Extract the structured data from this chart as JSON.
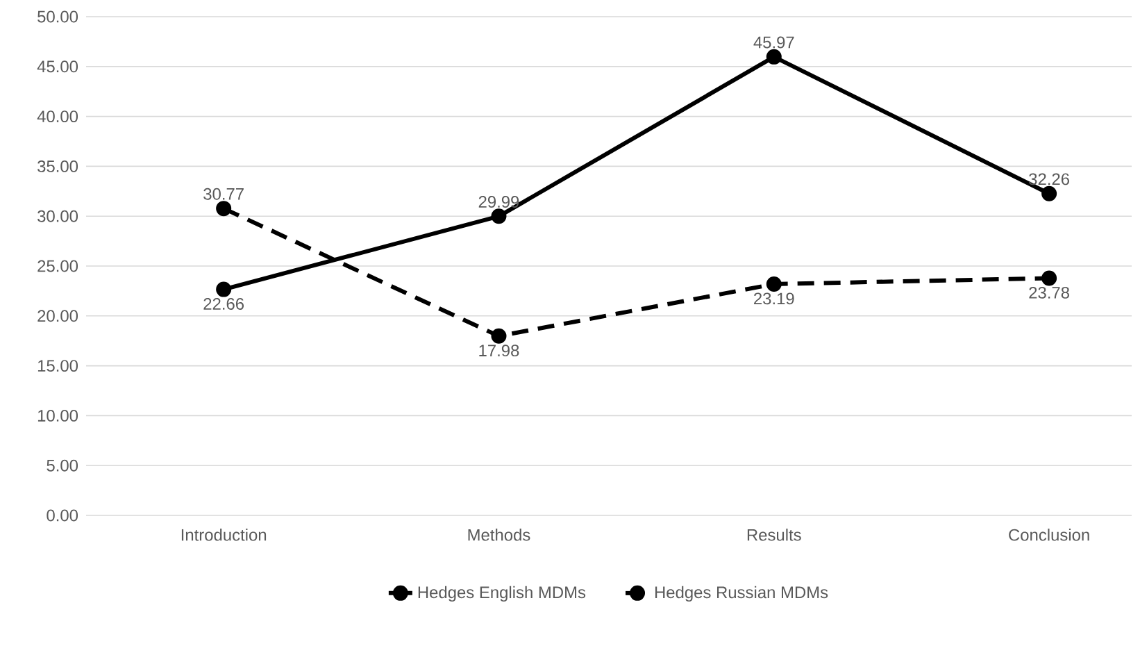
{
  "chart_data": {
    "type": "line",
    "categories": [
      "Introduction",
      "Methods",
      "Results",
      "Conclusion"
    ],
    "series": [
      {
        "name": "Hedges English MDMs",
        "color": "#000000",
        "line_style": "solid",
        "values": [
          22.66,
          29.99,
          45.97,
          32.26
        ]
      },
      {
        "name": "Hedges Russian MDMs",
        "color": "#000000",
        "line_style": "dashed",
        "values": [
          30.77,
          17.98,
          23.19,
          23.78
        ]
      }
    ],
    "ylim": [
      0,
      50
    ],
    "yticks": [
      {
        "value": 0,
        "label": "0.00"
      },
      {
        "value": 5,
        "label": "5.00"
      },
      {
        "value": 10,
        "label": "10.00"
      },
      {
        "value": 15,
        "label": "15.00"
      },
      {
        "value": 20,
        "label": "20.00"
      },
      {
        "value": 25,
        "label": "25.00"
      },
      {
        "value": 30,
        "label": "30.00"
      },
      {
        "value": 35,
        "label": "35.00"
      },
      {
        "value": 40,
        "label": "40.00"
      },
      {
        "value": 45,
        "label": "45.00"
      },
      {
        "value": 50,
        "label": "50.00"
      }
    ],
    "grid": "y",
    "legend": "bottom",
    "marker": "circle",
    "data_labels": true
  }
}
